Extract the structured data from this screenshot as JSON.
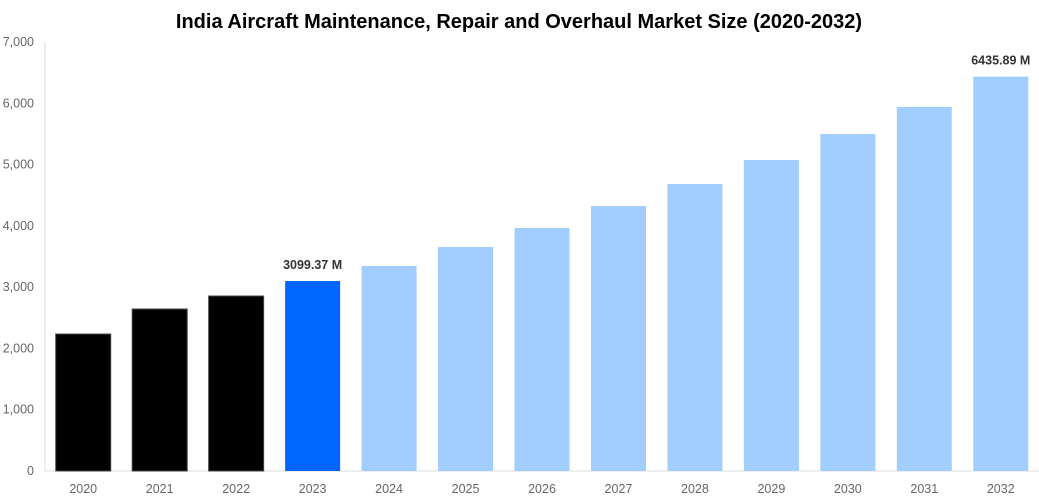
{
  "chart_data": {
    "type": "bar",
    "title": "India Aircraft Maintenance, Repair and Overhaul Market Size (2020-2032)",
    "xlabel": "",
    "ylabel": "",
    "ylim": [
      0,
      7000
    ],
    "yticks": [
      0,
      1000,
      2000,
      3000,
      4000,
      5000,
      6000,
      7000
    ],
    "ytick_labels": [
      "0",
      "1,000",
      "2,000",
      "3,000",
      "4,000",
      "5,000",
      "6,000",
      "7,000"
    ],
    "categories": [
      "2020",
      "2021",
      "2022",
      "2023",
      "2024",
      "2025",
      "2026",
      "2027",
      "2028",
      "2029",
      "2030",
      "2031",
      "2032"
    ],
    "values": [
      2235,
      2643,
      2855,
      3099.37,
      3345,
      3655,
      3965,
      4324,
      4683,
      5074,
      5498,
      5939,
      6435.89
    ],
    "bar_colors": [
      "#000000",
      "#000000",
      "#000000",
      "#0066ff",
      "#a2cdff",
      "#a2cdff",
      "#a2cdff",
      "#a2cdff",
      "#a2cdff",
      "#a2cdff",
      "#a2cdff",
      "#a2cdff",
      "#a2cdff"
    ],
    "data_labels": [
      {
        "category": "2023",
        "text": "3099.37 M"
      },
      {
        "category": "2032",
        "text": "6435.89 M"
      }
    ],
    "grid": false,
    "legend": "none"
  }
}
